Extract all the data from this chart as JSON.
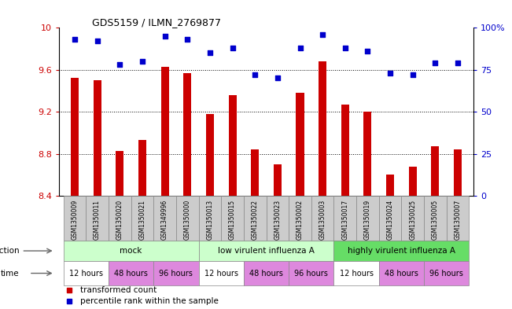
{
  "title": "GDS5159 / ILMN_2769877",
  "samples": [
    "GSM1350009",
    "GSM1350011",
    "GSM1350020",
    "GSM1350021",
    "GSM1349996",
    "GSM1350000",
    "GSM1350013",
    "GSM1350015",
    "GSM1350022",
    "GSM1350023",
    "GSM1350002",
    "GSM1350003",
    "GSM1350017",
    "GSM1350019",
    "GSM1350024",
    "GSM1350025",
    "GSM1350005",
    "GSM1350007"
  ],
  "bar_values": [
    9.52,
    9.5,
    8.83,
    8.93,
    9.63,
    9.57,
    9.18,
    9.36,
    8.84,
    8.7,
    9.38,
    9.68,
    9.27,
    9.2,
    8.6,
    8.68,
    8.87,
    8.84
  ],
  "dot_values": [
    93,
    92,
    78,
    80,
    95,
    93,
    85,
    88,
    72,
    70,
    88,
    96,
    88,
    86,
    73,
    72,
    79,
    79
  ],
  "ylim": [
    8.4,
    10.0
  ],
  "yticks": [
    8.4,
    8.8,
    9.2,
    9.6,
    10.0
  ],
  "ytick_labels": [
    "8.4",
    "8.8",
    "9.2",
    "9.6",
    "10"
  ],
  "y2lim": [
    0,
    100
  ],
  "y2ticks": [
    0,
    25,
    50,
    75,
    100
  ],
  "y2tick_labels": [
    "0",
    "25",
    "50",
    "75",
    "100%"
  ],
  "bar_color": "#cc0000",
  "dot_color": "#0000cc",
  "infection_groups": [
    {
      "label": "mock",
      "start": 0,
      "end": 6,
      "color": "#ccffcc"
    },
    {
      "label": "low virulent influenza A",
      "start": 6,
      "end": 12,
      "color": "#ccffcc"
    },
    {
      "label": "highly virulent influenza A",
      "start": 12,
      "end": 18,
      "color": "#66dd66"
    }
  ],
  "time_colors": [
    "#ffffff",
    "#dd88dd",
    "#dd88dd"
  ],
  "time_labels": [
    "12 hours",
    "48 hours",
    "96 hours"
  ],
  "sample_box_color": "#cccccc",
  "legend_items": [
    {
      "label": "transformed count",
      "color": "#cc0000"
    },
    {
      "label": "percentile rank within the sample",
      "color": "#0000cc"
    }
  ]
}
